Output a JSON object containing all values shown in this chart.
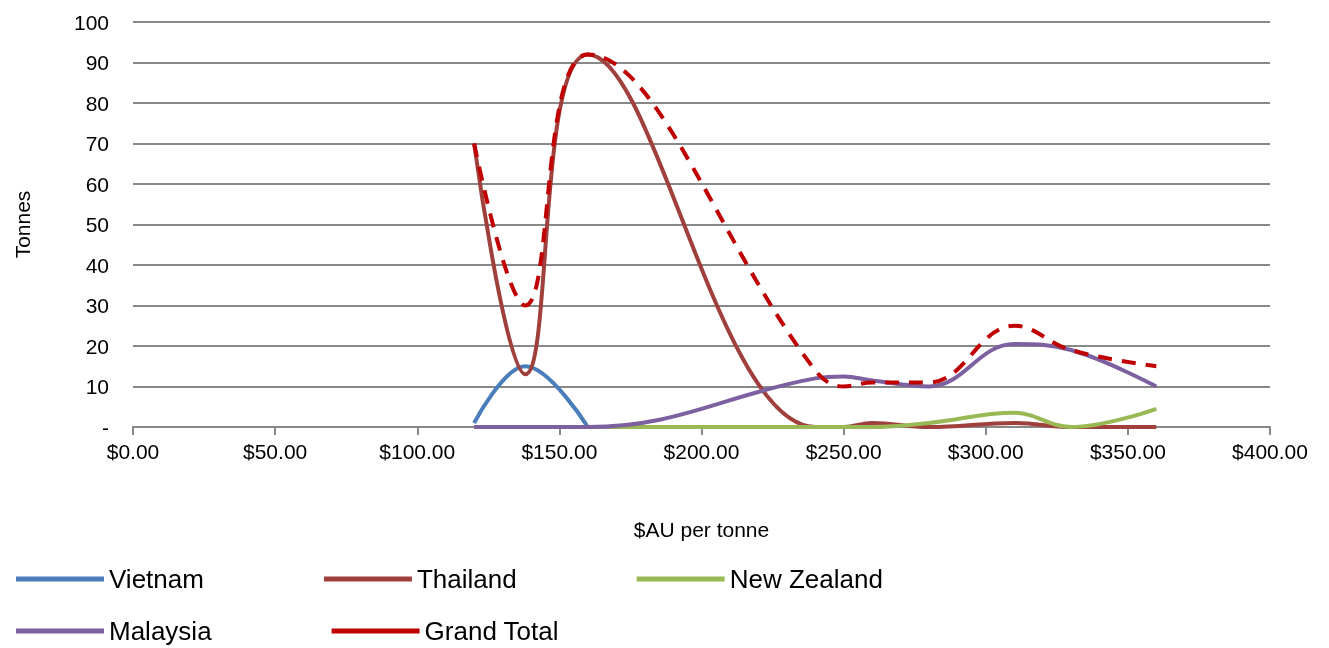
{
  "chart_data": {
    "type": "line",
    "xlabel": "$AU per tonne",
    "ylabel": "Tonnes",
    "x": [
      120,
      138,
      160,
      240,
      250,
      260,
      280,
      310,
      330,
      360
    ],
    "series": [
      {
        "name": "Vietnam",
        "color": "#4a7ebb",
        "values": [
          1,
          15,
          0,
          null,
          null,
          null,
          null,
          null,
          null,
          null
        ]
      },
      {
        "name": "Thailand",
        "color": "#a0403d",
        "values": [
          70,
          13,
          92,
          0,
          0,
          1,
          0,
          1,
          0,
          0
        ]
      },
      {
        "name": "New Zealand",
        "color": "#98b954",
        "values": [
          0,
          0,
          0,
          0,
          0,
          0,
          1,
          3.5,
          0,
          4.5
        ]
      },
      {
        "name": "Malaysia",
        "color": "#7d60a0",
        "values": [
          0,
          0,
          0,
          12,
          12.5,
          11.5,
          10,
          20.5,
          19,
          10
        ]
      },
      {
        "name": "Grand Total",
        "color": "#c00000",
        "line_style": "dashed",
        "values": [
          70,
          30,
          92,
          14,
          10,
          11,
          11,
          25,
          19,
          15
        ]
      }
    ],
    "xlim": [
      0,
      400
    ],
    "xticks": [
      {
        "value": 0,
        "label": "$0.00"
      },
      {
        "value": 50,
        "label": "$50.00"
      },
      {
        "value": 100,
        "label": "$100.00"
      },
      {
        "value": 150,
        "label": "$150.00"
      },
      {
        "value": 200,
        "label": "$200.00"
      },
      {
        "value": 250,
        "label": "$250.00"
      },
      {
        "value": 300,
        "label": "$300.00"
      },
      {
        "value": 350,
        "label": "$350.00"
      },
      {
        "value": 400,
        "label": "$400.00"
      }
    ],
    "ylim": [
      0,
      100
    ],
    "yticks": [
      {
        "value": 0,
        "label": "-"
      },
      10,
      20,
      30,
      40,
      50,
      60,
      70,
      80,
      90,
      100
    ],
    "grid": "y",
    "legend": "bottom",
    "marker": "none",
    "line_style": "solid"
  }
}
